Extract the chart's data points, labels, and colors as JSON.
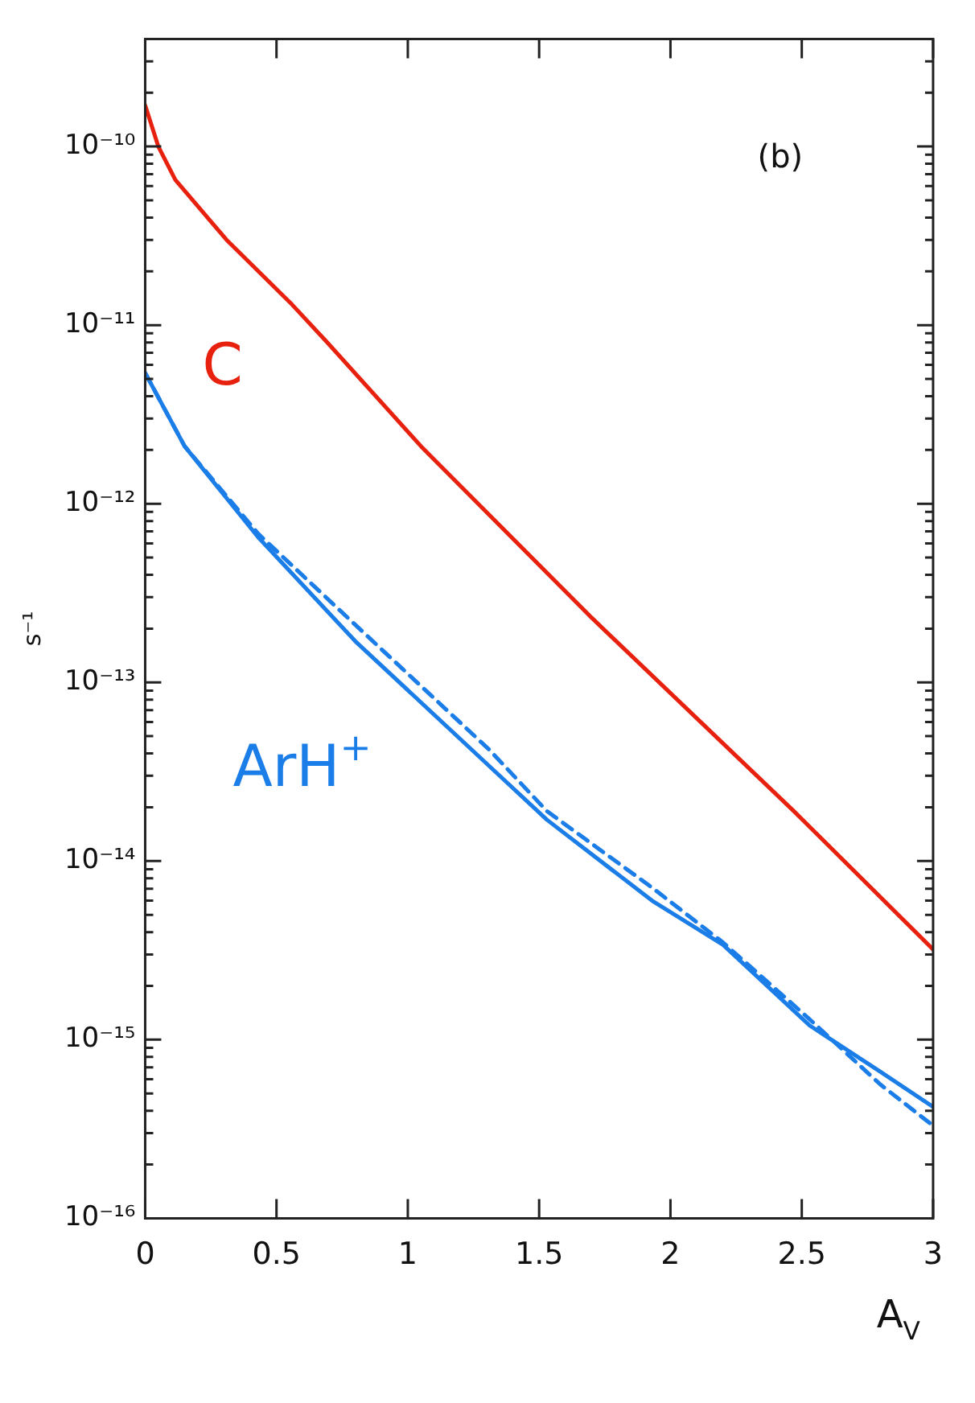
{
  "chart_data": {
    "type": "line",
    "xlabel": "A$_{V}$",
    "ylabel": "s⁻¹",
    "annotations": [
      "(b)"
    ],
    "log": "y",
    "grid": false,
    "legend": false,
    "marker": "none",
    "xlim": [
      0,
      3
    ],
    "xticks": [
      0,
      0.5,
      1,
      1.5,
      2,
      2.5,
      3
    ],
    "ylim": [
      1e-16,
      4e-10
    ],
    "yticks": [
      {
        "value": 1e-16,
        "label": "10⁻¹⁶"
      },
      {
        "value": 2e-16,
        "label": null
      },
      {
        "value": 3e-16,
        "label": null
      },
      {
        "value": 4e-16,
        "label": null
      },
      {
        "value": 5e-16,
        "label": null
      },
      {
        "value": 6e-16,
        "label": null
      },
      {
        "value": 7e-16,
        "label": null
      },
      {
        "value": 8e-16,
        "label": null
      },
      {
        "value": 9e-16,
        "label": null
      },
      {
        "value": 1e-15,
        "label": "10⁻¹⁵"
      },
      {
        "value": 2e-15,
        "label": null
      },
      {
        "value": 3e-15,
        "label": null
      },
      {
        "value": 4e-15,
        "label": null
      },
      {
        "value": 5e-15,
        "label": null
      },
      {
        "value": 6e-15,
        "label": null
      },
      {
        "value": 7e-15,
        "label": null
      },
      {
        "value": 8e-15,
        "label": null
      },
      {
        "value": 9e-15,
        "label": null
      },
      {
        "value": 1e-14,
        "label": "10⁻¹⁴"
      },
      {
        "value": 2e-14,
        "label": null
      },
      {
        "value": 3e-14,
        "label": null
      },
      {
        "value": 4e-14,
        "label": null
      },
      {
        "value": 5e-14,
        "label": null
      },
      {
        "value": 6e-14,
        "label": null
      },
      {
        "value": 7e-14,
        "label": null
      },
      {
        "value": 8e-14,
        "label": null
      },
      {
        "value": 9e-14,
        "label": null
      },
      {
        "value": 1e-13,
        "label": "10⁻¹³"
      },
      {
        "value": 2e-13,
        "label": null
      },
      {
        "value": 3e-13,
        "label": null
      },
      {
        "value": 4e-13,
        "label": null
      },
      {
        "value": 5e-13,
        "label": null
      },
      {
        "value": 6e-13,
        "label": null
      },
      {
        "value": 7e-13,
        "label": null
      },
      {
        "value": 8e-13,
        "label": null
      },
      {
        "value": 9e-13,
        "label": null
      },
      {
        "value": 1e-12,
        "label": "10⁻¹²"
      },
      {
        "value": 2e-12,
        "label": null
      },
      {
        "value": 3e-12,
        "label": null
      },
      {
        "value": 4e-12,
        "label": null
      },
      {
        "value": 5e-12,
        "label": null
      },
      {
        "value": 6e-12,
        "label": null
      },
      {
        "value": 7e-12,
        "label": null
      },
      {
        "value": 8e-12,
        "label": null
      },
      {
        "value": 9e-12,
        "label": null
      },
      {
        "value": 1e-11,
        "label": "10⁻¹¹"
      },
      {
        "value": 2e-11,
        "label": null
      },
      {
        "value": 3e-11,
        "label": null
      },
      {
        "value": 4e-11,
        "label": null
      },
      {
        "value": 5e-11,
        "label": null
      },
      {
        "value": 6e-11,
        "label": null
      },
      {
        "value": 7e-11,
        "label": null
      },
      {
        "value": 8e-11,
        "label": null
      },
      {
        "value": 9e-11,
        "label": null
      },
      {
        "value": 1e-10,
        "label": "10⁻¹⁰"
      },
      {
        "value": 2e-10,
        "label": null
      },
      {
        "value": 3e-10,
        "label": null
      },
      {
        "value": 4e-10,
        "label": null
      }
    ],
    "series": [
      {
        "name": "C",
        "color": "#e8210f",
        "line_style": "solid",
        "x": [
          0,
          0.05,
          0.115,
          0.31,
          0.56,
          0.69,
          1.05,
          1.7,
          2.47,
          3
        ],
        "values": [
          1.7e-10,
          1e-10,
          6.5e-11,
          3e-11,
          1.3e-11,
          8.1e-12,
          2.1e-12,
          2.3e-13,
          1.9e-14,
          3.2e-15
        ]
      },
      {
        "name": "ArH$^{+}$",
        "color": "#1a7de8",
        "line_style": "solid",
        "x": [
          0,
          0.15,
          0.43,
          0.8,
          1.31,
          1.53,
          1.93,
          2.2,
          2.53,
          2.8,
          3
        ],
        "values": [
          5.4e-12,
          2.1e-12,
          6.5e-13,
          1.7e-13,
          3.4e-14,
          1.7e-14,
          6e-15,
          3.4e-15,
          1.2e-15,
          6.6e-16,
          4.2e-16
        ]
      },
      {
        "color": "#1a7de8",
        "line_style": "dashed",
        "x": [
          0,
          0.15,
          0.43,
          0.8,
          1.31,
          1.53,
          1.93,
          2.2,
          2.53,
          2.8,
          3
        ],
        "values": [
          5.4e-12,
          2.1e-12,
          6.8e-13,
          2.1e-13,
          4.2e-14,
          1.9e-14,
          7.1e-15,
          3.5e-15,
          1.3e-15,
          5.6e-16,
          3.3e-16
        ]
      }
    ]
  }
}
